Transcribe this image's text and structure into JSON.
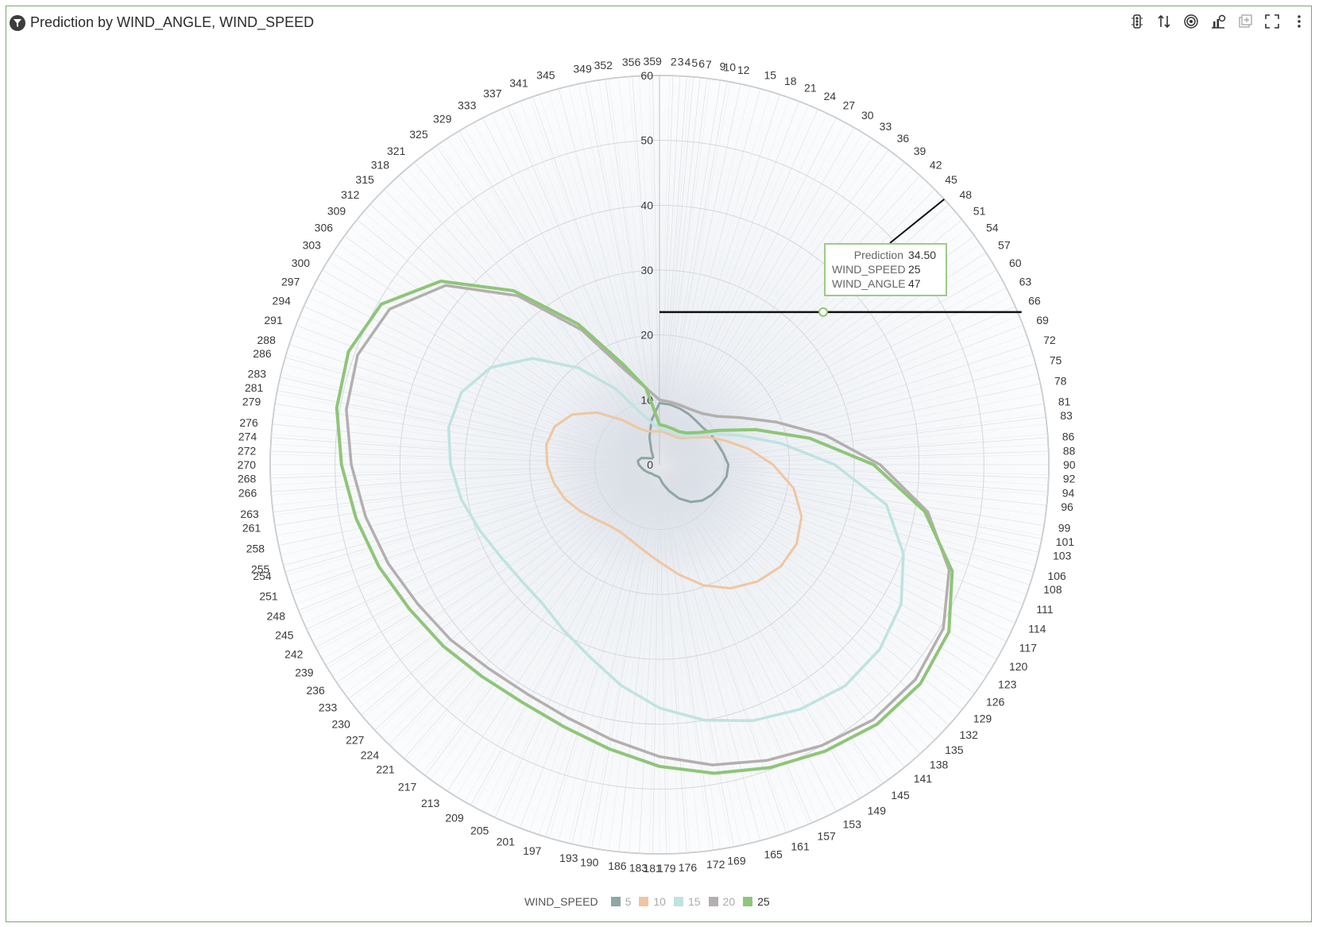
{
  "header": {
    "title": "Prediction by WIND_ANGLE, WIND_SPEED",
    "title_icon": "filter-icon",
    "toolbar": [
      {
        "name": "traffic-light-icon"
      },
      {
        "name": "sort-icon"
      },
      {
        "name": "target-icon"
      },
      {
        "name": "chart-settings-icon"
      },
      {
        "name": "add-panel-icon"
      },
      {
        "name": "fullscreen-icon"
      },
      {
        "name": "more-icon"
      }
    ]
  },
  "colors": {
    "5": "#8fa6a4",
    "10": "#f0c6a0",
    "15": "#bfe3e1",
    "20": "#b4afae",
    "25": "#8fc578",
    "frame": "#7aa86a"
  },
  "tooltip": {
    "rows": [
      {
        "label": "Prediction",
        "value": "34.50"
      },
      {
        "label": "WIND_SPEED",
        "value": "25"
      },
      {
        "label": "WIND_ANGLE",
        "value": "47"
      }
    ]
  },
  "legend": {
    "title": "WIND_SPEED",
    "items": [
      "5",
      "10",
      "15",
      "20",
      "25"
    ]
  },
  "chart_data": {
    "type": "polar-line",
    "radial_ticks": [
      "0",
      "10",
      "20",
      "30",
      "40",
      "50",
      "60"
    ],
    "rlim": [
      0,
      60
    ],
    "angle_labels": [
      "2",
      "3",
      "4",
      "5",
      "6",
      "7",
      "9",
      "10",
      "12",
      "15",
      "18",
      "21",
      "24",
      "27",
      "30",
      "33",
      "36",
      "39",
      "42",
      "45",
      "48",
      "51",
      "54",
      "57",
      "60",
      "63",
      "66",
      "69",
      "72",
      "75",
      "78",
      "81",
      "83",
      "86",
      "88",
      "90",
      "92",
      "94",
      "96",
      "99",
      "101",
      "103",
      "106",
      "108",
      "111",
      "114",
      "117",
      "120",
      "123",
      "126",
      "129",
      "132",
      "135",
      "138",
      "141",
      "145",
      "149",
      "153",
      "157",
      "161",
      "165",
      "169",
      "172",
      "176",
      "179",
      "181",
      "183",
      "186",
      "190",
      "193",
      "197",
      "201",
      "205",
      "209",
      "213",
      "217",
      "221",
      "224",
      "227",
      "230",
      "233",
      "236",
      "239",
      "242",
      "245",
      "248",
      "251",
      "254",
      "255",
      "258",
      "261",
      "263",
      "266",
      "268",
      "270",
      "272",
      "274",
      "276",
      "279",
      "281",
      "283",
      "286",
      "288",
      "291",
      "294",
      "297",
      "300",
      "303",
      "306",
      "309",
      "312",
      "315",
      "318",
      "321",
      "325",
      "329",
      "333",
      "337",
      "341",
      "345",
      "349",
      "352",
      "356",
      "359"
    ],
    "angles": [
      0,
      10,
      20,
      30,
      40,
      50,
      60,
      70,
      80,
      90,
      100,
      110,
      120,
      130,
      140,
      150,
      160,
      170,
      180,
      190,
      200,
      210,
      220,
      230,
      240,
      250,
      260,
      270,
      280,
      290,
      300,
      310,
      320,
      330,
      340,
      350
    ],
    "series": [
      {
        "name": "5",
        "values": [
          9.5,
          9.4,
          9.2,
          9.0,
          8.8,
          8.8,
          9.2,
          9.5,
          10.0,
          10.6,
          10.5,
          9.9,
          9.3,
          8.6,
          7.5,
          6.0,
          4.3,
          3.0,
          2.0,
          1.8,
          1.8,
          1.8,
          1.8,
          2.0,
          2.2,
          2.5,
          2.8,
          3.2,
          3.4,
          3.0,
          2.0,
          1.5,
          1.5,
          2.5,
          4.5,
          7.0
        ]
      },
      {
        "name": "10",
        "values": [
          5.2,
          5.0,
          4.9,
          4.9,
          5.3,
          6.5,
          8.5,
          10.8,
          14.0,
          17.5,
          21.0,
          23.3,
          24.4,
          24.4,
          23.5,
          22.0,
          19.8,
          17.2,
          15.0,
          13.5,
          12.5,
          12.0,
          12.2,
          13.0,
          14.2,
          15.5,
          16.5,
          17.3,
          17.7,
          17.2,
          15.5,
          12.5,
          9.0,
          6.5,
          5.5,
          5.2
        ]
      },
      {
        "name": "15",
        "values": [
          5.6,
          5.4,
          5.3,
          5.3,
          5.8,
          7.0,
          9.5,
          13.2,
          19.0,
          27.0,
          35.5,
          40.0,
          43.0,
          44.3,
          44.5,
          43.5,
          42.0,
          40.0,
          37.5,
          34.5,
          31.5,
          29.5,
          28.0,
          27.8,
          28.3,
          29.5,
          31.0,
          32.2,
          33.0,
          32.5,
          30.0,
          25.5,
          19.5,
          13.5,
          8.5,
          6.5
        ]
      },
      {
        "name": "20",
        "values": [
          10.0,
          9.8,
          9.7,
          9.8,
          10.3,
          11.6,
          14.5,
          19.2,
          26.0,
          34.0,
          42.0,
          47.5,
          50.5,
          51.5,
          51.3,
          50.0,
          48.5,
          47.0,
          45.0,
          43.0,
          41.5,
          40.8,
          41.0,
          42.0,
          43.0,
          44.5,
          46.0,
          47.5,
          49.0,
          49.5,
          48.0,
          43.0,
          34.0,
          24.0,
          15.5,
          12.0
        ]
      },
      {
        "name": "25",
        "values": [
          6.2,
          6.0,
          5.9,
          5.9,
          6.4,
          7.7,
          10.6,
          15.8,
          23.5,
          33.0,
          41.5,
          48.0,
          51.5,
          52.5,
          52.2,
          51.0,
          49.7,
          48.3,
          46.5,
          44.5,
          43.0,
          42.3,
          42.6,
          43.5,
          44.5,
          46.0,
          47.5,
          49.0,
          50.5,
          51.0,
          49.5,
          44.0,
          35.0,
          25.0,
          16.5,
          12.0
        ]
      }
    ],
    "hover_point": {
      "angle": 47,
      "value": 34.5,
      "series": "25"
    }
  }
}
